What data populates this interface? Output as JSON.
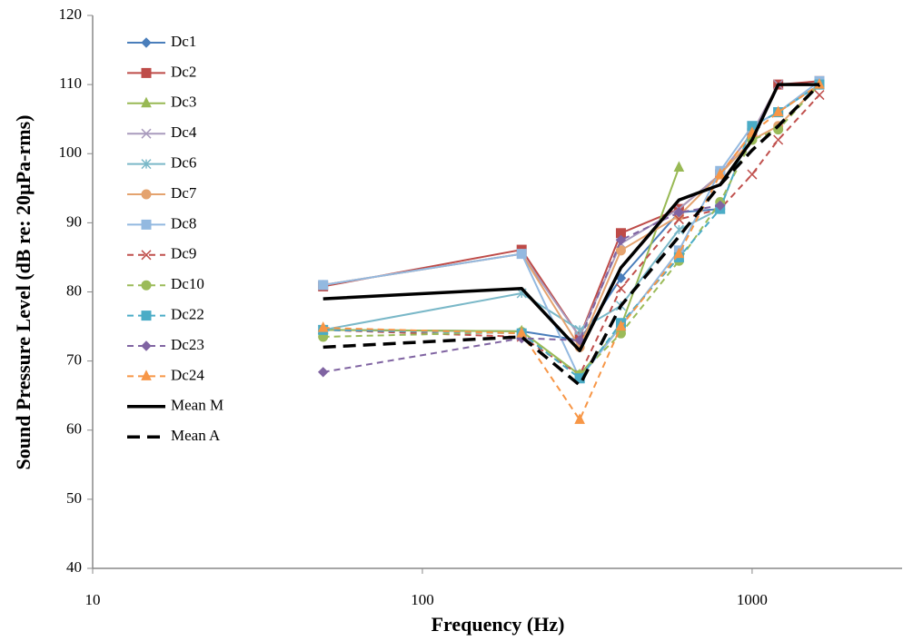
{
  "chart_data": {
    "type": "line",
    "x_label": "Frequency (Hz)",
    "y_label": "Sound Pressure Level (dB re: 20µPa-rms)",
    "x": [
      50,
      200,
      300,
      400,
      600,
      800,
      1000,
      1200,
      1600
    ],
    "x_log": true,
    "xlim": [
      10,
      2850
    ],
    "xticks": [
      10,
      100,
      1000
    ],
    "ylim": [
      40,
      120
    ],
    "yticks": [
      40,
      50,
      60,
      70,
      80,
      90,
      100,
      110,
      120
    ],
    "grid": false,
    "legend": "top-left",
    "series": [
      {
        "name": "Dc1",
        "color": "#4a7ebb",
        "marker": "diamond",
        "dash": false,
        "values": [
          74.5,
          74.3,
          73.0,
          82,
          91.5,
          92,
          null,
          null,
          null
        ]
      },
      {
        "name": "Dc2",
        "color": "#be4b48",
        "marker": "square",
        "dash": false,
        "values": [
          80.8,
          86.1,
          73.5,
          88.5,
          92,
          97,
          103,
          110,
          110.5
        ]
      },
      {
        "name": "Dc3",
        "color": "#98b954",
        "marker": "triangle",
        "dash": false,
        "values": [
          74.5,
          74.3,
          68,
          75,
          98,
          null,
          null,
          null,
          null
        ]
      },
      {
        "name": "Dc4",
        "color": "#a99bbd",
        "marker": "x",
        "dash": false,
        "values": [
          81,
          85.5,
          73.5,
          87,
          92,
          97,
          103,
          110,
          110
        ]
      },
      {
        "name": "Dc6",
        "color": "#7ab8c8",
        "marker": "star",
        "dash": false,
        "values": [
          74.5,
          79.8,
          74.5,
          78,
          89,
          92,
          104,
          106,
          110
        ]
      },
      {
        "name": "Dc7",
        "color": "#e4a36f",
        "marker": "circle",
        "dash": false,
        "values": [
          81,
          85.5,
          72,
          86,
          91,
          97,
          102,
          104,
          110
        ]
      },
      {
        "name": "Dc8",
        "color": "#93b9e0",
        "marker": "square",
        "dash": false,
        "values": [
          81,
          85.5,
          67.5,
          75,
          86,
          97.5,
          104,
          106,
          110.5
        ]
      },
      {
        "name": "Dc9",
        "color": "#c0504d",
        "marker": "x",
        "dash": true,
        "values": [
          74.5,
          73.5,
          68,
          80.5,
          90.5,
          92,
          97,
          102,
          108.5
        ]
      },
      {
        "name": "Dc10",
        "color": "#9bbb59",
        "marker": "circle",
        "dash": true,
        "values": [
          73.5,
          74.2,
          68,
          74,
          84.5,
          93,
          102,
          103.5,
          110
        ]
      },
      {
        "name": "Dc22",
        "color": "#4bacc6",
        "marker": "square",
        "dash": true,
        "values": [
          74.5,
          74,
          67.5,
          75.5,
          85,
          92,
          104,
          106,
          110
        ]
      },
      {
        "name": "Dc23",
        "color": "#8064a2",
        "marker": "diamond",
        "dash": true,
        "values": [
          68.4,
          73.3,
          73,
          87.5,
          91.5,
          92.5,
          null,
          null,
          null
        ]
      },
      {
        "name": "Dc24",
        "color": "#f79646",
        "marker": "triangle",
        "dash": true,
        "values": [
          74.8,
          74,
          61.5,
          75,
          85.5,
          97,
          103,
          106,
          110
        ]
      },
      {
        "name": "Mean M",
        "color": "#000000",
        "marker": "none",
        "dash": false,
        "values": [
          79,
          80.5,
          71.5,
          83.5,
          93.3,
          95.5,
          102,
          110,
          110
        ]
      },
      {
        "name": "Mean A",
        "color": "#000000",
        "marker": "none",
        "dash": true,
        "values": [
          72,
          73.5,
          66.5,
          78,
          88,
          95.5,
          100.5,
          104,
          110
        ]
      }
    ]
  }
}
